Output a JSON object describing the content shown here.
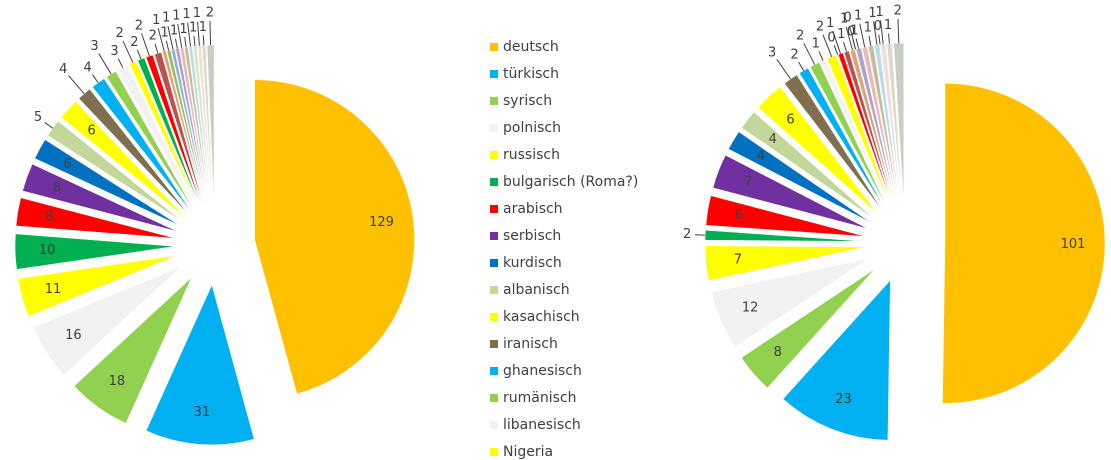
{
  "legend": {
    "categories": [
      "deutsch",
      "türkisch",
      "syrisch",
      "polnisch",
      "russisch",
      "bulgarisch (Roma?)",
      "arabisch",
      "serbisch",
      "kurdisch",
      "albanisch",
      "kasachisch",
      "iranisch",
      "ghanesisch",
      "rumänisch",
      "libanesisch",
      "Nigeria"
    ],
    "colors": [
      "#FFC000",
      "#00B0F0",
      "#92D050",
      "#F2F2F2",
      "#FFFF00",
      "#00B050",
      "#FF0000",
      "#7030A0",
      "#0070C0",
      "#C4D79B",
      "#FFFF00",
      "#7F6F4F",
      "#00B0F0",
      "#92D050",
      "#F2F2F2",
      "#FFFF00"
    ]
  },
  "chart_data": [
    {
      "type": "pie",
      "values": [
        129,
        31,
        18,
        16,
        11,
        10,
        8,
        8,
        6,
        5,
        6,
        4,
        4,
        3,
        3,
        2,
        2,
        2,
        2,
        1,
        1,
        1,
        1,
        1,
        1,
        1,
        1,
        1,
        1,
        2
      ],
      "colors": [
        "#FFC000",
        "#00B0F0",
        "#92D050",
        "#F2F2F2",
        "#FFFF00",
        "#00B050",
        "#FF0000",
        "#7030A0",
        "#0070C0",
        "#C4D79B",
        "#FFFF00",
        "#7F6F4F",
        "#00B0F0",
        "#92D050",
        "#F2F2F2",
        "#FFFF00",
        "#00B050",
        "#FF0000",
        "#C0504D",
        "#D9A57B",
        "#9BBB59",
        "#8DB4E2",
        "#B1A0C7",
        "#E6B9B8",
        "#C4BD97",
        "#B7DEE8",
        "#D8E4BC",
        "#F2DCDB",
        "#DDD9C4",
        "#C9CEC4"
      ]
    },
    {
      "type": "pie",
      "values": [
        101,
        23,
        8,
        12,
        7,
        2,
        6,
        7,
        4,
        4,
        6,
        3,
        2,
        2,
        1,
        2,
        0,
        1,
        1,
        1,
        0,
        0,
        1,
        1,
        1,
        1,
        0,
        1,
        1,
        2
      ],
      "colors": [
        "#FFC000",
        "#00B0F0",
        "#92D050",
        "#F2F2F2",
        "#FFFF00",
        "#00B050",
        "#FF0000",
        "#7030A0",
        "#0070C0",
        "#C4D79B",
        "#FFFF00",
        "#7F6F4F",
        "#00B0F0",
        "#92D050",
        "#F2F2F2",
        "#FFFF00",
        "#00B050",
        "#FF0000",
        "#C0504D",
        "#D9A57B",
        "#9BBB59",
        "#8DB4E2",
        "#B1A0C7",
        "#E6B9B8",
        "#C4BD97",
        "#B7DEE8",
        "#D8E4BC",
        "#F2DCDB",
        "#DDD9C4",
        "#C9CEC4"
      ]
    }
  ]
}
